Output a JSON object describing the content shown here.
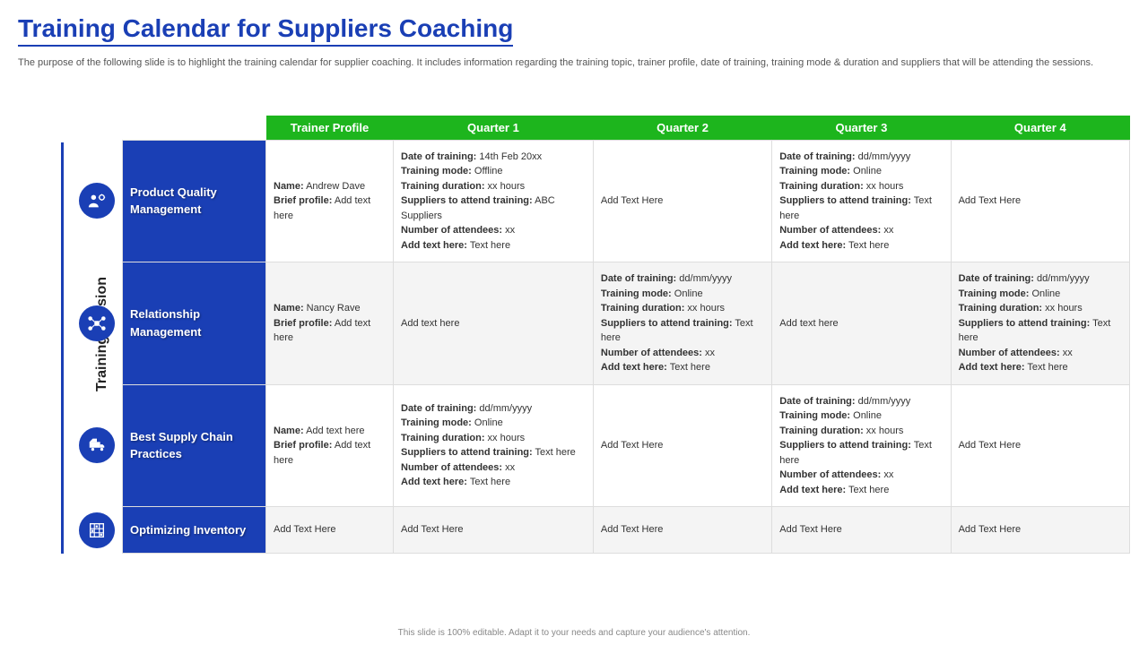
{
  "page": {
    "title": "Training Calendar for Suppliers Coaching",
    "description": "The purpose of the following slide is to highlight the training calendar for supplier coaching. It includes information regarding the training topic, trainer profile, date of training, training mode & duration and suppliers that will be attending the sessions.",
    "axis_label": "Training Session",
    "footer": "This slide is 100% editable. Adapt it to your needs and capture your audience's attention."
  },
  "colors": {
    "brand_blue": "#1a3fb5",
    "header_green": "#1db51d",
    "row_alt_bg": "#f4f4f4",
    "row_bg": "#ffffff",
    "border": "#dddddd",
    "text": "#333333",
    "muted": "#888888"
  },
  "typography": {
    "title_fontsize": 28,
    "description_fontsize": 11,
    "header_fontsize": 13,
    "cell_fontsize": 11,
    "topic_fontsize": 13
  },
  "table": {
    "headers": [
      "Trainer Profile",
      "Quarter 1",
      "Quarter 2",
      "Quarter 3",
      "Quarter 4"
    ],
    "rows": [
      {
        "icon": "gear-person",
        "topic": "Product Quality Management",
        "trainer": [
          {
            "label": "Name:",
            "value": "Andrew Dave"
          },
          {
            "label": "Brief profile:",
            "value": "Add text here"
          }
        ],
        "q1": [
          {
            "label": "Date of training:",
            "value": "14th Feb 20xx"
          },
          {
            "label": "Training mode:",
            "value": "Offline"
          },
          {
            "label": "Training duration:",
            "value": "xx hours"
          },
          {
            "label": "Suppliers to attend training:",
            "value": "ABC Suppliers"
          },
          {
            "label": "Number of attendees:",
            "value": "xx"
          },
          {
            "label": "Add text here:",
            "value": "Text here"
          }
        ],
        "q2": "Add Text Here",
        "q3": [
          {
            "label": "Date of training:",
            "value": "dd/mm/yyyy"
          },
          {
            "label": "Training mode:",
            "value": "Online"
          },
          {
            "label": "Training duration:",
            "value": "xx hours"
          },
          {
            "label": "Suppliers to attend training:",
            "value": "Text here"
          },
          {
            "label": "Number of attendees:",
            "value": "xx"
          },
          {
            "label": "Add text here:",
            "value": "Text here"
          }
        ],
        "q4": "Add Text Here"
      },
      {
        "icon": "network",
        "topic": "Relationship Management",
        "trainer": [
          {
            "label": "Name:",
            "value": "Nancy Rave"
          },
          {
            "label": "Brief profile:",
            "value": "Add text here"
          }
        ],
        "q1": "Add text here",
        "q2": [
          {
            "label": "Date of training:",
            "value": "dd/mm/yyyy"
          },
          {
            "label": "Training mode:",
            "value": "Online"
          },
          {
            "label": "Training duration:",
            "value": "xx hours"
          },
          {
            "label": "Suppliers to attend training:",
            "value": "Text here"
          },
          {
            "label": "Number of attendees:",
            "value": "xx"
          },
          {
            "label": "Add text here:",
            "value": "Text here"
          }
        ],
        "q3": "Add text here",
        "q4": [
          {
            "label": "Date of training:",
            "value": "dd/mm/yyyy"
          },
          {
            "label": "Training mode:",
            "value": "Online"
          },
          {
            "label": "Training duration:",
            "value": "xx hours"
          },
          {
            "label": "Suppliers to attend training:",
            "value": "Text here"
          },
          {
            "label": "Number of attendees:",
            "value": "xx"
          },
          {
            "label": "Add text here:",
            "value": "Text here"
          }
        ]
      },
      {
        "icon": "truck",
        "topic": "Best Supply Chain Practices",
        "trainer": [
          {
            "label": "Name:",
            "value": "Add text here"
          },
          {
            "label": "Brief profile:",
            "value": "Add text here"
          }
        ],
        "q1": [
          {
            "label": "Date of training:",
            "value": "dd/mm/yyyy"
          },
          {
            "label": "Training mode:",
            "value": "Online"
          },
          {
            "label": "Training duration:",
            "value": "xx hours"
          },
          {
            "label": "Suppliers to attend training:",
            "value": "Text here"
          },
          {
            "label": "Number of attendees:",
            "value": "xx"
          },
          {
            "label": "Add text here:",
            "value": "Text here"
          }
        ],
        "q2": "Add Text Here",
        "q3": [
          {
            "label": "Date of training:",
            "value": "dd/mm/yyyy"
          },
          {
            "label": "Training mode:",
            "value": "Online"
          },
          {
            "label": "Training duration:",
            "value": "xx hours"
          },
          {
            "label": "Suppliers to attend training:",
            "value": "Text here"
          },
          {
            "label": "Number of attendees:",
            "value": "xx"
          },
          {
            "label": "Add text here:",
            "value": "Text here"
          }
        ],
        "q4": "Add Text Here"
      },
      {
        "icon": "shelves",
        "topic": "Optimizing Inventory",
        "trainer": "Add Text Here",
        "q1": "Add Text Here",
        "q2": "Add Text Here",
        "q3": "Add Text Here",
        "q4": "Add Text Here",
        "short": true
      }
    ]
  }
}
